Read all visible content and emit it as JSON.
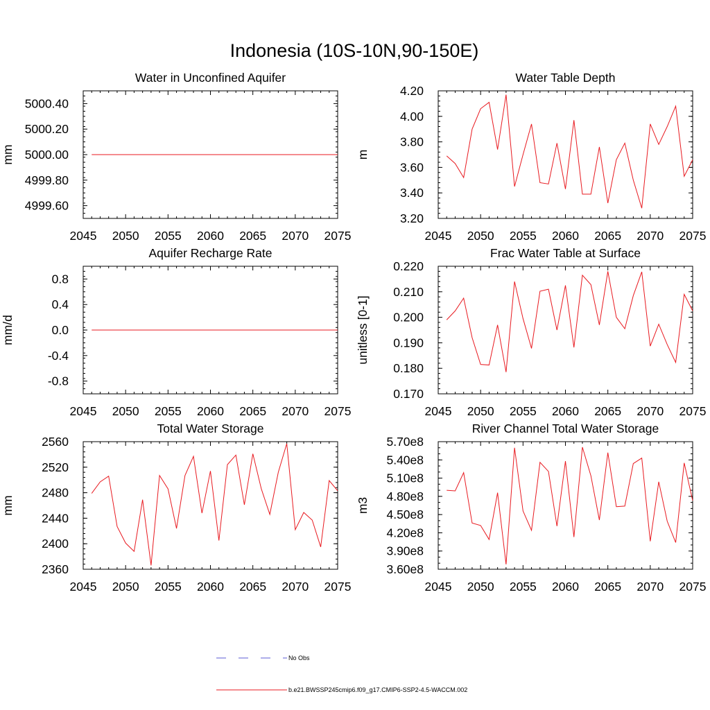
{
  "figure": {
    "title": "Indonesia (10S-10N,90-150E)"
  },
  "legend": {
    "obs_label": "No Obs",
    "model_label": "b.e21.BWSSP245cmip6.f09_g17.CMIP6-SSP2-4.5-WACCM.002",
    "obs_color": "#5b5bd6",
    "model_color": "#e8191f"
  },
  "chart_data": [
    {
      "type": "line",
      "title": "Water in Unconfined Aquifer",
      "ylabel": "mm",
      "xlabel": "",
      "xlim": [
        2045,
        2075
      ],
      "ylim": [
        4999.5,
        5000.5
      ],
      "xticks": [
        2045,
        2050,
        2055,
        2060,
        2065,
        2070,
        2075
      ],
      "yticks": [
        4999.6,
        4999.8,
        5000.0,
        5000.2,
        5000.4
      ],
      "ytick_labels": [
        "4999.60",
        "4999.80",
        "5000.00",
        "5000.20",
        "5000.40"
      ],
      "y_minor_step": 0.04,
      "grid": false,
      "series": [
        {
          "color": "#e8191f",
          "x": [
            2046,
            2047,
            2048,
            2049,
            2050,
            2051,
            2052,
            2053,
            2054,
            2055,
            2056,
            2057,
            2058,
            2059,
            2060,
            2061,
            2062,
            2063,
            2064,
            2065,
            2066,
            2067,
            2068,
            2069,
            2070,
            2071,
            2072,
            2073,
            2074,
            2075
          ],
          "values": [
            5000,
            5000,
            5000,
            5000,
            5000,
            5000,
            5000,
            5000,
            5000,
            5000,
            5000,
            5000,
            5000,
            5000,
            5000,
            5000,
            5000,
            5000,
            5000,
            5000,
            5000,
            5000,
            5000,
            5000,
            5000,
            5000,
            5000,
            5000,
            5000,
            5000
          ]
        }
      ]
    },
    {
      "type": "line",
      "title": "Water Table Depth",
      "ylabel": "m",
      "xlabel": "",
      "xlim": [
        2045,
        2075
      ],
      "ylim": [
        3.2,
        4.2
      ],
      "xticks": [
        2045,
        2050,
        2055,
        2060,
        2065,
        2070,
        2075
      ],
      "yticks": [
        3.2,
        3.4,
        3.6,
        3.8,
        4.0,
        4.2
      ],
      "ytick_labels": [
        "3.20",
        "3.40",
        "3.60",
        "3.80",
        "4.00",
        "4.20"
      ],
      "y_minor_step": 0.04,
      "grid": false,
      "series": [
        {
          "color": "#e8191f",
          "x": [
            2046,
            2047,
            2048,
            2049,
            2050,
            2051,
            2052,
            2053,
            2054,
            2055,
            2056,
            2057,
            2058,
            2059,
            2060,
            2061,
            2062,
            2063,
            2064,
            2065,
            2066,
            2067,
            2068,
            2069,
            2070,
            2071,
            2072,
            2073,
            2074,
            2075
          ],
          "values": [
            3.69,
            3.63,
            3.52,
            3.9,
            4.06,
            4.11,
            3.74,
            4.17,
            3.45,
            3.7,
            3.94,
            3.48,
            3.47,
            3.79,
            3.43,
            3.97,
            3.39,
            3.39,
            3.76,
            3.32,
            3.66,
            3.79,
            3.5,
            3.28,
            3.94,
            3.78,
            3.92,
            4.08,
            3.53,
            3.66
          ]
        }
      ]
    },
    {
      "type": "line",
      "title": "Aquifer Recharge Rate",
      "ylabel": "mm/d",
      "xlabel": "",
      "xlim": [
        2045,
        2075
      ],
      "ylim": [
        -1.0,
        1.0
      ],
      "xticks": [
        2045,
        2050,
        2055,
        2060,
        2065,
        2070,
        2075
      ],
      "yticks": [
        -0.8,
        -0.4,
        0.0,
        0.4,
        0.8
      ],
      "ytick_labels": [
        "-0.8",
        "-0.4",
        "0.0",
        "0.4",
        "0.8"
      ],
      "y_minor_step": 0.08,
      "grid": false,
      "series": [
        {
          "color": "#e8191f",
          "x": [
            2046,
            2047,
            2048,
            2049,
            2050,
            2051,
            2052,
            2053,
            2054,
            2055,
            2056,
            2057,
            2058,
            2059,
            2060,
            2061,
            2062,
            2063,
            2064,
            2065,
            2066,
            2067,
            2068,
            2069,
            2070,
            2071,
            2072,
            2073,
            2074,
            2075
          ],
          "values": [
            0,
            0,
            0,
            0,
            0,
            0,
            0,
            0,
            0,
            0,
            0,
            0,
            0,
            0,
            0,
            0,
            0,
            0,
            0,
            0,
            0,
            0,
            0,
            0,
            0,
            0,
            0,
            0,
            0,
            0
          ]
        }
      ]
    },
    {
      "type": "line",
      "title": "Frac Water Table at Surface",
      "ylabel": "unitless [0-1]",
      "xlabel": "",
      "xlim": [
        2045,
        2075
      ],
      "ylim": [
        0.17,
        0.22
      ],
      "xticks": [
        2045,
        2050,
        2055,
        2060,
        2065,
        2070,
        2075
      ],
      "yticks": [
        0.17,
        0.18,
        0.19,
        0.2,
        0.21,
        0.22
      ],
      "ytick_labels": [
        "0.170",
        "0.180",
        "0.190",
        "0.200",
        "0.210",
        "0.220"
      ],
      "y_minor_step": 0.002,
      "grid": false,
      "series": [
        {
          "color": "#e8191f",
          "x": [
            2046,
            2047,
            2048,
            2049,
            2050,
            2051,
            2052,
            2053,
            2054,
            2055,
            2056,
            2057,
            2058,
            2059,
            2060,
            2061,
            2062,
            2063,
            2064,
            2065,
            2066,
            2067,
            2068,
            2069,
            2070,
            2071,
            2072,
            2073,
            2074,
            2075
          ],
          "values": [
            0.199,
            0.2025,
            0.2075,
            0.192,
            0.1815,
            0.1813,
            0.197,
            0.1785,
            0.214,
            0.1995,
            0.1878,
            0.2102,
            0.211,
            0.195,
            0.2125,
            0.1882,
            0.2165,
            0.2128,
            0.197,
            0.218,
            0.2,
            0.1955,
            0.2085,
            0.2178,
            0.1887,
            0.1973,
            0.1893,
            0.1823,
            0.209,
            0.2025
          ]
        }
      ]
    },
    {
      "type": "line",
      "title": "Total Water Storage",
      "ylabel": "mm",
      "xlabel": "",
      "xlim": [
        2045,
        2075
      ],
      "ylim": [
        2360,
        2560
      ],
      "xticks": [
        2045,
        2050,
        2055,
        2060,
        2065,
        2070,
        2075
      ],
      "yticks": [
        2360,
        2400,
        2440,
        2480,
        2520,
        2560
      ],
      "ytick_labels": [
        "2360",
        "2400",
        "2440",
        "2480",
        "2520",
        "2560"
      ],
      "y_minor_step": 8,
      "grid": false,
      "series": [
        {
          "color": "#e8191f",
          "x": [
            2046,
            2047,
            2048,
            2049,
            2050,
            2051,
            2052,
            2053,
            2054,
            2055,
            2056,
            2057,
            2058,
            2059,
            2060,
            2061,
            2062,
            2063,
            2064,
            2065,
            2066,
            2067,
            2068,
            2069,
            2070,
            2071,
            2072,
            2073,
            2074,
            2075
          ],
          "values": [
            2479,
            2497,
            2506,
            2427,
            2401,
            2388,
            2469,
            2366,
            2507,
            2486,
            2424,
            2507,
            2537,
            2448,
            2514,
            2405,
            2524,
            2539,
            2461,
            2541,
            2486,
            2446,
            2512,
            2557,
            2422,
            2449,
            2437,
            2395,
            2499,
            2483
          ]
        }
      ]
    },
    {
      "type": "line",
      "title": "River Channel Total Water Storage",
      "ylabel": "m3",
      "xlabel": "",
      "xlim": [
        2045,
        2075
      ],
      "ylim": [
        360000000,
        570000000
      ],
      "xticks": [
        2045,
        2050,
        2055,
        2060,
        2065,
        2070,
        2075
      ],
      "yticks": [
        360000000,
        390000000,
        420000000,
        450000000,
        480000000,
        510000000,
        540000000,
        570000000
      ],
      "ytick_labels": [
        "3.60e8",
        "3.90e8",
        "4.20e8",
        "4.50e8",
        "4.80e8",
        "5.10e8",
        "5.40e8",
        "5.70e8"
      ],
      "y_minor_step": 10000000,
      "grid": false,
      "series": [
        {
          "color": "#e8191f",
          "x": [
            2046,
            2047,
            2048,
            2049,
            2050,
            2051,
            2052,
            2053,
            2054,
            2055,
            2056,
            2057,
            2058,
            2059,
            2060,
            2061,
            2062,
            2063,
            2064,
            2065,
            2066,
            2067,
            2068,
            2069,
            2070,
            2071,
            2072,
            2073,
            2074,
            2075
          ],
          "values": [
            490000000,
            489000000,
            519000000,
            436000000,
            432000000,
            409000000,
            486000000,
            368000000,
            560000000,
            456000000,
            424000000,
            536000000,
            521000000,
            431000000,
            538000000,
            413000000,
            561000000,
            514000000,
            441000000,
            552000000,
            463000000,
            464000000,
            534000000,
            543000000,
            406000000,
            504000000,
            439000000,
            404000000,
            535000000,
            473000000
          ]
        }
      ]
    }
  ]
}
